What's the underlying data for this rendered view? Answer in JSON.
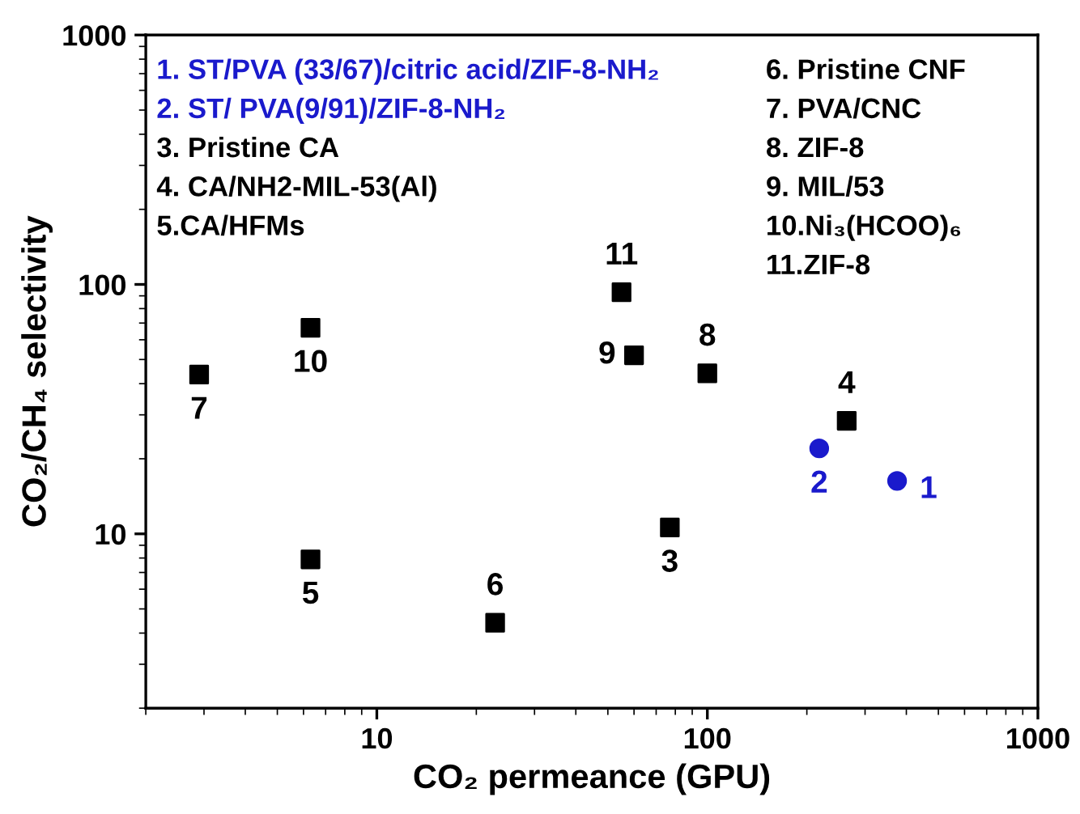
{
  "chart_data": {
    "type": "scatter",
    "xlabel": "CO₂ permeance (GPU)",
    "ylabel": "CO₂/CH₄ selectivity",
    "log": "xy",
    "xlim": [
      2,
      1000
    ],
    "ylim": [
      2,
      1000
    ],
    "xticks": [
      10,
      100,
      1000
    ],
    "yticks": [
      10,
      100,
      1000
    ],
    "grid": false,
    "legend": false,
    "series": [
      {
        "color": "#1a1acc",
        "marker": "circle",
        "x": [
          375,
          218
        ],
        "values": [
          16.3,
          22
        ]
      },
      {
        "color": "#000000",
        "marker": "square",
        "x": [
          77,
          264,
          6.3,
          22.8,
          2.9,
          100,
          60,
          6.3,
          55
        ],
        "values": [
          10.6,
          28.4,
          7.9,
          4.4,
          43.5,
          44,
          52,
          67,
          93
        ]
      }
    ],
    "annotations": [
      {
        "text": "1",
        "x": 375,
        "y": 16.3
      },
      {
        "text": "2",
        "x": 218,
        "y": 22
      },
      {
        "text": "3",
        "x": 77,
        "y": 10.6
      },
      {
        "text": "4",
        "x": 264,
        "y": 28.4
      },
      {
        "text": "5",
        "x": 6.3,
        "y": 7.9
      },
      {
        "text": "6",
        "x": 22.8,
        "y": 4.4
      },
      {
        "text": "7",
        "x": 2.9,
        "y": 43.5
      },
      {
        "text": "8",
        "x": 100,
        "y": 44
      },
      {
        "text": "9",
        "x": 60,
        "y": 52
      },
      {
        "text": "10",
        "x": 6.3,
        "y": 67
      },
      {
        "text": "11",
        "x": 55,
        "y": 93
      },
      "1. ST/PVA (33/67)/citric acid/ZIF-8-NH₂",
      "2. ST/ PVA(9/91)/ZIF-8-NH₂",
      "3. Pristine CA",
      "4. CA/NH2-MIL-53(Al)",
      "5.CA/HFMs",
      "6. Pristine CNF",
      "7. PVA/CNC",
      "8. ZIF-8",
      "9. MIL/53",
      "10.Ni₃(HCOO)₆",
      "11.ZIF-8"
    ]
  }
}
